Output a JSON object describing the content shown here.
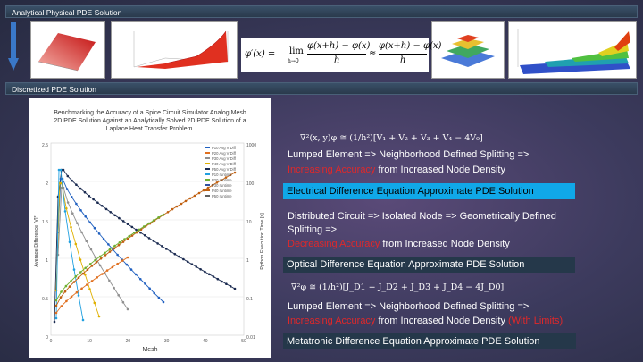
{
  "header": {
    "analytical": "Analytical Physical PDE Solution",
    "discretized": "Discretized PDE Solution"
  },
  "formula": {
    "lhs": "φ′(x) =",
    "lim": "lim",
    "lim_sub": "h→0",
    "num": "φ(x+h) − φ(x)",
    "den": "h",
    "approx": "≈"
  },
  "chart": {
    "title_lines": [
      "Benchmarking the Accuracy of a Spice Circuit Simulator Analog Mesh",
      "2D PDE Solution Against an Analytically Solved 2D PDE Solution of a",
      "Laplace Heat Transfer Problem."
    ],
    "xlabel": "Mesh",
    "ylabel_left": "Average Difference [V]*",
    "ylabel_right": "Python Execution Time [s]",
    "left_ticks": [
      "2.5",
      "2",
      "1.5",
      "1",
      "0.5",
      "0"
    ],
    "right_ticks": [
      "1000",
      "100",
      "10",
      "1",
      "0.1",
      "0.01"
    ],
    "x_ticks": [
      "0",
      "10",
      "20",
      "30",
      "40",
      "50"
    ],
    "legend": [
      "P10 Avg V Diff",
      "P20 Avg V Diff",
      "P30 Avg V Diff",
      "P40 Avg V Diff",
      "P50 Avg V Diff",
      "P10 runtime",
      "P20 runtime",
      "P30 runtime",
      "P40 runtime",
      "P50 runtime"
    ]
  },
  "right": {
    "eq1": "∇²(x, y)φ ≅ (1/h²)[V₁ + V₂ + V₃ + V₄ − 4V₀]",
    "l1a": "Lumped Element => Neighborhood Defined Splitting =>",
    "l1b_red": "Increasing Accuracy",
    "l1b_rest": " from Increased Node Density",
    "box1": "Electrical Difference Equation Approximate PDE Solution",
    "l2a": "Distributed Circuit => Isolated Node => Geometrically Defined",
    "l2b": "Splitting =>",
    "l2c_red": "Decreasing Accuracy",
    "l2c_rest": " from Increased Node Density",
    "box2": "Optical Difference Equation Approximate PDE Solution",
    "eq2": "∇²φ ≅ (1/h²)[J_D1 + J_D2 + J_D3 + J_D4 − 4J_D0]",
    "l3a": "Lumped Element => Neighborhood Defined Splitting =>",
    "l3b_red": "Increasing Accuracy",
    "l3b_rest": " from Increased Node Density ",
    "l3b_red2": "(With Limits)",
    "box3": "Metatronic Difference Equation Approximate PDE Solution"
  },
  "colors": {
    "box1": "#10a8e8",
    "red": "#e0282a"
  }
}
